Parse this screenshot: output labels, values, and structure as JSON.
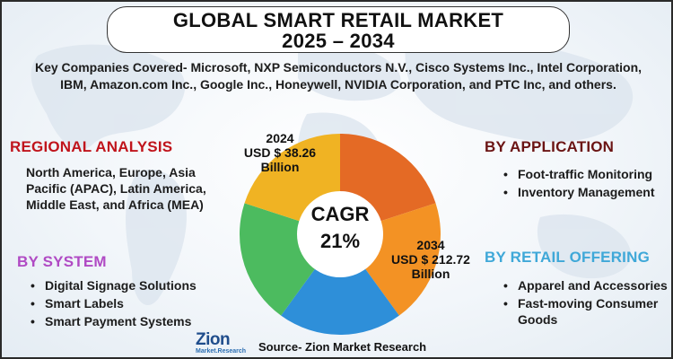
{
  "title": {
    "line1": "GLOBAL SMART RETAIL MARKET",
    "line2": "2025 – 2034"
  },
  "subtitle": "Key Companies Covered- Microsoft, NXP Semiconductors N.V., Cisco Systems Inc., Intel Corporation, IBM, Amazon.com Inc., Google Inc., Honeywell, NVIDIA Corporation, and PTC Inc, and others.",
  "regional": {
    "heading": "REGIONAL ANALYSIS",
    "body": "North America, Europe, Asia Pacific (APAC), Latin America, Middle East, and Africa (MEA)"
  },
  "system": {
    "heading": "BY SYSTEM",
    "items": [
      "Digital Signage Solutions",
      "Smart Labels",
      "Smart Payment Systems"
    ]
  },
  "application": {
    "heading": "BY APPLICATION",
    "items": [
      "Foot-traffic Monitoring",
      "Inventory Management"
    ]
  },
  "retail_offering": {
    "heading": "BY RETAIL OFFERING",
    "items": [
      "Apparel and Accessories",
      "Fast-moving Consumer Goods"
    ]
  },
  "donut": {
    "label_2024": {
      "year": "2024",
      "value": "USD $ 38.26",
      "unit": "Billion"
    },
    "label_2034": {
      "year": "2034",
      "value": "USD $ 212.72",
      "unit": "Billion"
    },
    "center": {
      "line1": "CAGR",
      "line2": "21%"
    },
    "segments": [
      {
        "color": "#e46a25",
        "fraction": 0.2
      },
      {
        "color": "#f39224",
        "fraction": 0.2
      },
      {
        "color": "#2e8fd9",
        "fraction": 0.2
      },
      {
        "color": "#4cbb5f",
        "fraction": 0.2
      },
      {
        "color": "#f0b323",
        "fraction": 0.2
      }
    ]
  },
  "logo": {
    "word": "Zion",
    "sub": "Market.Research"
  },
  "source": "Source- Zion Market Research",
  "colors": {
    "regional_heading": "#c0141c",
    "system_heading": "#b04ac4",
    "application_heading": "#6b1414",
    "retail_heading": "#3fa8d8"
  }
}
